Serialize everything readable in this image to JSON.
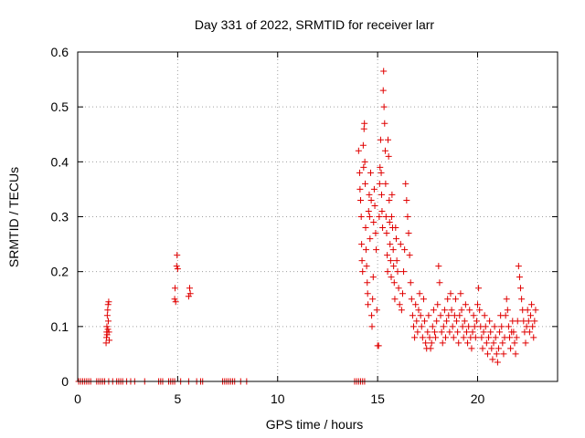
{
  "chart_data": {
    "type": "scatter",
    "title": "Day 331 of 2022, SRMTID for receiver larr",
    "xlabel": "GPS time / hours",
    "ylabel": "SRMTID / TECUs",
    "xlim": [
      0,
      24
    ],
    "ylim": [
      0,
      0.6
    ],
    "xticks": [
      0,
      5,
      10,
      15,
      20
    ],
    "xtick_labels": [
      "0",
      "5",
      "10",
      "15",
      "20"
    ],
    "yticks": [
      0,
      0.1,
      0.2,
      0.3,
      0.4,
      0.5,
      0.6
    ],
    "ytick_labels": [
      "0",
      "0.1",
      "0.2",
      "0.3",
      "0.4",
      "0.5",
      "0.6"
    ],
    "grid": true,
    "marker": "+",
    "color": "#e00000",
    "series": [
      {
        "name": "larr",
        "points": [
          [
            0.05,
            0
          ],
          [
            0.15,
            0
          ],
          [
            0.25,
            0
          ],
          [
            0.35,
            0
          ],
          [
            0.45,
            0
          ],
          [
            0.55,
            0
          ],
          [
            0.65,
            0
          ],
          [
            0.95,
            0
          ],
          [
            1.05,
            0
          ],
          [
            1.15,
            0
          ],
          [
            1.25,
            0
          ],
          [
            1.35,
            0
          ],
          [
            1.55,
            0
          ],
          [
            1.75,
            0
          ],
          [
            1.95,
            0
          ],
          [
            2.05,
            0
          ],
          [
            2.15,
            0
          ],
          [
            2.25,
            0
          ],
          [
            2.45,
            0
          ],
          [
            2.65,
            0
          ],
          [
            2.85,
            0
          ],
          [
            3.35,
            0
          ],
          [
            4.05,
            0
          ],
          [
            4.15,
            0
          ],
          [
            4.25,
            0
          ],
          [
            4.55,
            0
          ],
          [
            4.65,
            0
          ],
          [
            4.75,
            0
          ],
          [
            4.85,
            0
          ],
          [
            5.15,
            0
          ],
          [
            5.55,
            0
          ],
          [
            5.95,
            0
          ],
          [
            6.15,
            0
          ],
          [
            6.25,
            0
          ],
          [
            7.25,
            0
          ],
          [
            7.35,
            0
          ],
          [
            7.45,
            0
          ],
          [
            7.55,
            0
          ],
          [
            7.65,
            0
          ],
          [
            7.75,
            0
          ],
          [
            7.85,
            0
          ],
          [
            8.15,
            0
          ],
          [
            8.45,
            0
          ],
          [
            13.85,
            0
          ],
          [
            13.95,
            0
          ],
          [
            14.05,
            0
          ],
          [
            14.15,
            0
          ],
          [
            14.25,
            0
          ],
          [
            14.35,
            0
          ],
          [
            1.42,
            0.07
          ],
          [
            1.44,
            0.08
          ],
          [
            1.45,
            0.09
          ],
          [
            1.46,
            0.1
          ],
          [
            1.47,
            0.085
          ],
          [
            1.48,
            0.12
          ],
          [
            1.5,
            0.13
          ],
          [
            1.51,
            0.095
          ],
          [
            1.52,
            0.14
          ],
          [
            1.53,
            0.11
          ],
          [
            1.55,
            0.145
          ],
          [
            1.56,
            0.09
          ],
          [
            1.58,
            0.075
          ],
          [
            4.85,
            0.15
          ],
          [
            4.87,
            0.17
          ],
          [
            4.9,
            0.145
          ],
          [
            4.95,
            0.21
          ],
          [
            4.97,
            0.23
          ],
          [
            5.0,
            0.205
          ],
          [
            5.55,
            0.155
          ],
          [
            5.6,
            0.17
          ],
          [
            5.63,
            0.16
          ],
          [
            14.05,
            0.42
          ],
          [
            14.1,
            0.38
          ],
          [
            14.12,
            0.35
          ],
          [
            14.15,
            0.33
          ],
          [
            14.18,
            0.3
          ],
          [
            14.2,
            0.25
          ],
          [
            14.22,
            0.22
          ],
          [
            14.25,
            0.2
          ],
          [
            14.28,
            0.43
          ],
          [
            14.3,
            0.39
          ],
          [
            14.32,
            0.46
          ],
          [
            14.34,
            0.47
          ],
          [
            14.36,
            0.4
          ],
          [
            14.38,
            0.36
          ],
          [
            14.4,
            0.28
          ],
          [
            14.42,
            0.24
          ],
          [
            14.45,
            0.21
          ],
          [
            14.48,
            0.18
          ],
          [
            14.5,
            0.16
          ],
          [
            14.52,
            0.14
          ],
          [
            14.55,
            0.31
          ],
          [
            14.58,
            0.34
          ],
          [
            14.6,
            0.3
          ],
          [
            14.62,
            0.26
          ],
          [
            14.65,
            0.38
          ],
          [
            14.68,
            0.33
          ],
          [
            14.7,
            0.12
          ],
          [
            14.72,
            0.1
          ],
          [
            14.75,
            0.15
          ],
          [
            14.78,
            0.19
          ],
          [
            14.8,
            0.29
          ],
          [
            14.83,
            0.35
          ],
          [
            14.86,
            0.32
          ],
          [
            14.9,
            0.27
          ],
          [
            14.93,
            0.24
          ],
          [
            14.96,
            0.13
          ],
          [
            15.0,
            0.065
          ],
          [
            15.05,
            0.065
          ],
          [
            15.08,
            0.3
          ],
          [
            15.1,
            0.36
          ],
          [
            15.12,
            0.39
          ],
          [
            15.15,
            0.44
          ],
          [
            15.18,
            0.38
          ],
          [
            15.2,
            0.34
          ],
          [
            15.22,
            0.31
          ],
          [
            15.25,
            0.28
          ],
          [
            15.28,
            0.53
          ],
          [
            15.3,
            0.565
          ],
          [
            15.32,
            0.5
          ],
          [
            15.35,
            0.47
          ],
          [
            15.38,
            0.42
          ],
          [
            15.4,
            0.36
          ],
          [
            15.42,
            0.3
          ],
          [
            15.45,
            0.27
          ],
          [
            15.48,
            0.23
          ],
          [
            15.5,
            0.2
          ],
          [
            15.52,
            0.44
          ],
          [
            15.55,
            0.41
          ],
          [
            15.58,
            0.33
          ],
          [
            15.6,
            0.29
          ],
          [
            15.62,
            0.25
          ],
          [
            15.65,
            0.22
          ],
          [
            15.68,
            0.19
          ],
          [
            15.7,
            0.3
          ],
          [
            15.72,
            0.34
          ],
          [
            15.75,
            0.28
          ],
          [
            15.78,
            0.24
          ],
          [
            15.8,
            0.21
          ],
          [
            15.83,
            0.18
          ],
          [
            15.86,
            0.15
          ],
          [
            15.9,
            0.28
          ],
          [
            15.93,
            0.26
          ],
          [
            15.96,
            0.22
          ],
          [
            16.0,
            0.2
          ],
          [
            16.05,
            0.17
          ],
          [
            16.1,
            0.14
          ],
          [
            16.15,
            0.25
          ],
          [
            16.2,
            0.13
          ],
          [
            16.25,
            0.16
          ],
          [
            16.3,
            0.2
          ],
          [
            16.35,
            0.24
          ],
          [
            16.4,
            0.36
          ],
          [
            16.45,
            0.33
          ],
          [
            16.5,
            0.3
          ],
          [
            16.55,
            0.27
          ],
          [
            16.6,
            0.23
          ],
          [
            16.65,
            0.18
          ],
          [
            16.7,
            0.15
          ],
          [
            16.75,
            0.12
          ],
          [
            16.8,
            0.1
          ],
          [
            16.85,
            0.08
          ],
          [
            16.9,
            0.14
          ],
          [
            16.95,
            0.11
          ],
          [
            17.0,
            0.09
          ],
          [
            17.05,
            0.13
          ],
          [
            17.1,
            0.16
          ],
          [
            17.15,
            0.12
          ],
          [
            17.2,
            0.1
          ],
          [
            17.25,
            0.08
          ],
          [
            17.3,
            0.15
          ],
          [
            17.35,
            0.11
          ],
          [
            17.4,
            0.07
          ],
          [
            17.45,
            0.06
          ],
          [
            17.5,
            0.09
          ],
          [
            17.55,
            0.12
          ],
          [
            17.6,
            0.08
          ],
          [
            17.65,
            0.06
          ],
          [
            17.7,
            0.07
          ],
          [
            17.75,
            0.1
          ],
          [
            17.8,
            0.13
          ],
          [
            17.85,
            0.09
          ],
          [
            17.9,
            0.08
          ],
          [
            17.95,
            0.11
          ],
          [
            18.0,
            0.14
          ],
          [
            18.05,
            0.21
          ],
          [
            18.1,
            0.18
          ],
          [
            18.15,
            0.12
          ],
          [
            18.2,
            0.09
          ],
          [
            18.25,
            0.07
          ],
          [
            18.3,
            0.1
          ],
          [
            18.35,
            0.13
          ],
          [
            18.4,
            0.08
          ],
          [
            18.45,
            0.11
          ],
          [
            18.5,
            0.15
          ],
          [
            18.55,
            0.12
          ],
          [
            18.6,
            0.09
          ],
          [
            18.65,
            0.16
          ],
          [
            18.7,
            0.13
          ],
          [
            18.75,
            0.1
          ],
          [
            18.8,
            0.08
          ],
          [
            18.85,
            0.12
          ],
          [
            18.9,
            0.15
          ],
          [
            18.95,
            0.11
          ],
          [
            19.0,
            0.09
          ],
          [
            19.05,
            0.07
          ],
          [
            19.1,
            0.12
          ],
          [
            19.15,
            0.16
          ],
          [
            19.2,
            0.13
          ],
          [
            19.25,
            0.1
          ],
          [
            19.3,
            0.08
          ],
          [
            19.35,
            0.11
          ],
          [
            19.4,
            0.14
          ],
          [
            19.45,
            0.09
          ],
          [
            19.5,
            0.07
          ],
          [
            19.55,
            0.1
          ],
          [
            19.6,
            0.13
          ],
          [
            19.65,
            0.08
          ],
          [
            19.7,
            0.06
          ],
          [
            19.75,
            0.09
          ],
          [
            19.8,
            0.12
          ],
          [
            19.85,
            0.1
          ],
          [
            19.9,
            0.08
          ],
          [
            19.95,
            0.11
          ],
          [
            20.0,
            0.14
          ],
          [
            20.05,
            0.17
          ],
          [
            20.1,
            0.13
          ],
          [
            20.15,
            0.1
          ],
          [
            20.2,
            0.08
          ],
          [
            20.25,
            0.06
          ],
          [
            20.3,
            0.09
          ],
          [
            20.35,
            0.12
          ],
          [
            20.4,
            0.1
          ],
          [
            20.45,
            0.07
          ],
          [
            20.5,
            0.05
          ],
          [
            20.55,
            0.08
          ],
          [
            20.6,
            0.11
          ],
          [
            20.65,
            0.09
          ],
          [
            20.7,
            0.06
          ],
          [
            20.75,
            0.04
          ],
          [
            20.8,
            0.07
          ],
          [
            20.85,
            0.1
          ],
          [
            20.9,
            0.08
          ],
          [
            20.95,
            0.05
          ],
          [
            21.0,
            0.035
          ],
          [
            21.05,
            0.06
          ],
          [
            21.1,
            0.09
          ],
          [
            21.15,
            0.12
          ],
          [
            21.2,
            0.1
          ],
          [
            21.25,
            0.07
          ],
          [
            21.3,
            0.05
          ],
          [
            21.35,
            0.08
          ],
          [
            21.4,
            0.12
          ],
          [
            21.45,
            0.15
          ],
          [
            21.5,
            0.13
          ],
          [
            21.55,
            0.1
          ],
          [
            21.6,
            0.08
          ],
          [
            21.65,
            0.06
          ],
          [
            21.7,
            0.09
          ],
          [
            21.75,
            0.11
          ],
          [
            21.8,
            0.09
          ],
          [
            21.85,
            0.07
          ],
          [
            21.9,
            0.05
          ],
          [
            21.95,
            0.08
          ],
          [
            22.0,
            0.11
          ],
          [
            22.05,
            0.21
          ],
          [
            22.1,
            0.19
          ],
          [
            22.15,
            0.17
          ],
          [
            22.2,
            0.15
          ],
          [
            22.25,
            0.13
          ],
          [
            22.3,
            0.11
          ],
          [
            22.35,
            0.09
          ],
          [
            22.4,
            0.07
          ],
          [
            22.45,
            0.1
          ],
          [
            22.5,
            0.13
          ],
          [
            22.55,
            0.11
          ],
          [
            22.6,
            0.09
          ],
          [
            22.65,
            0.12
          ],
          [
            22.7,
            0.14
          ],
          [
            22.75,
            0.1
          ],
          [
            22.8,
            0.08
          ],
          [
            22.85,
            0.11
          ],
          [
            22.9,
            0.13
          ]
        ]
      }
    ]
  }
}
